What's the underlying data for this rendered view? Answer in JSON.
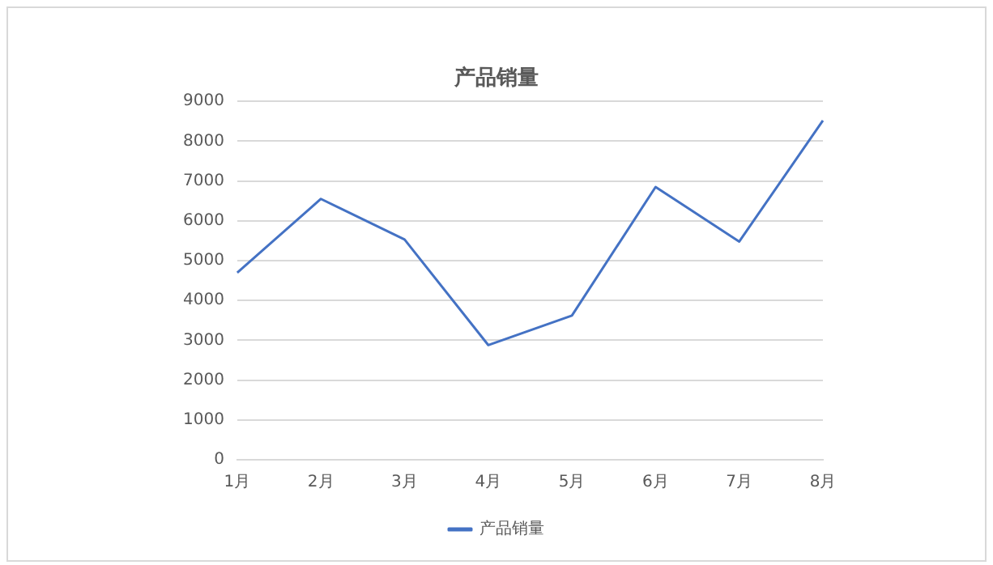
{
  "chart_data": {
    "type": "line",
    "title": "产品销量",
    "categories": [
      "1月",
      "2月",
      "3月",
      "4月",
      "5月",
      "6月",
      "7月",
      "8月"
    ],
    "series": [
      {
        "name": "产品销量",
        "color": "#4472c4",
        "values": [
          4700,
          6550,
          5530,
          2880,
          3620,
          6850,
          5480,
          8520
        ]
      }
    ],
    "ylim": [
      0,
      9000
    ],
    "yticks": [
      0,
      1000,
      2000,
      3000,
      4000,
      5000,
      6000,
      7000,
      8000,
      9000
    ],
    "grid": "y",
    "legend": "bottom",
    "marker": "none",
    "line_style": "solid"
  }
}
